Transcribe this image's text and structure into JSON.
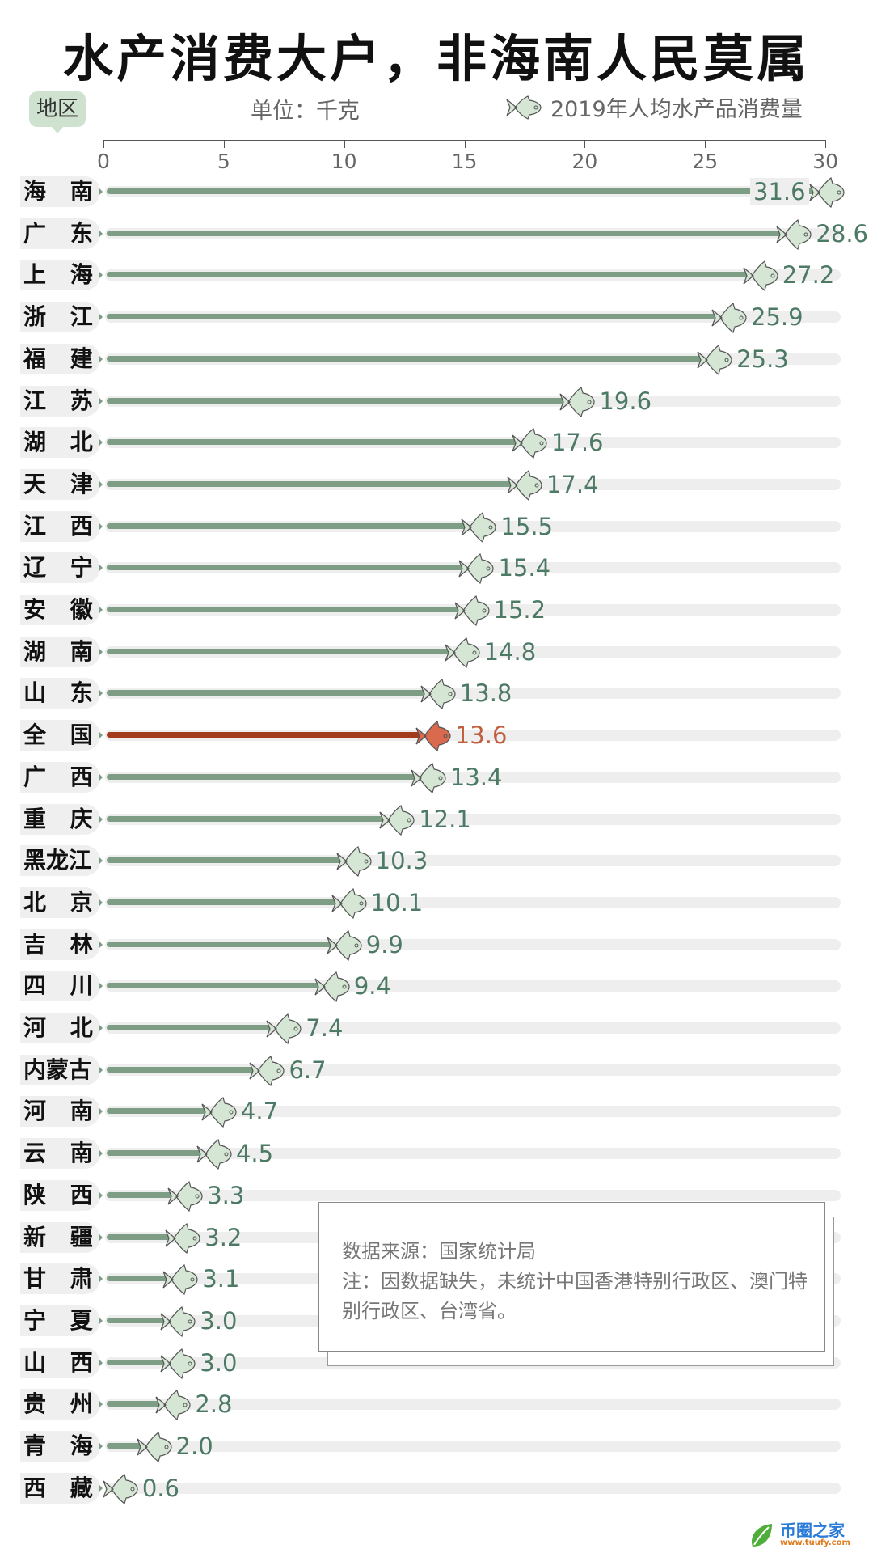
{
  "title": "水产消费大户，非海南人民莫属",
  "region_badge": "地区",
  "unit": "单位：千克",
  "legend": "2019年人均水产品消费量",
  "colors": {
    "bar": "#7d9e84",
    "value": "#4d7a65",
    "national_bar": "#a43a1c",
    "national_value": "#c0603f",
    "track": "#eeeeee"
  },
  "note": {
    "source": "数据来源：国家统计局",
    "text": "注：因数据缺失，未统计中国香港特别行政区、澳门特别行政区、台湾省。"
  },
  "brand": {
    "name": "币圈之家",
    "url": "www.tuufy.com"
  },
  "chart_data": {
    "type": "bar",
    "orientation": "horizontal",
    "title": "水产消费大户，非海南人民莫属",
    "xlabel": "单位：千克",
    "ylabel": "地区",
    "legend": [
      "2019年人均水产品消费量"
    ],
    "xlim": [
      0,
      30
    ],
    "xticks": [
      0,
      5,
      10,
      15,
      20,
      25,
      30
    ],
    "categories": [
      "海南",
      "广东",
      "上海",
      "浙江",
      "福建",
      "江苏",
      "湖北",
      "天津",
      "江西",
      "辽宁",
      "安徽",
      "湖南",
      "山东",
      "全国",
      "广西",
      "重庆",
      "黑龙江",
      "北京",
      "吉林",
      "四川",
      "河北",
      "内蒙古",
      "河南",
      "云南",
      "陕西",
      "新疆",
      "甘肃",
      "宁夏",
      "山西",
      "贵州",
      "青海",
      "西藏"
    ],
    "values": [
      31.6,
      28.6,
      27.2,
      25.9,
      25.3,
      19.6,
      17.6,
      17.4,
      15.5,
      15.4,
      15.2,
      14.8,
      13.8,
      13.6,
      13.4,
      12.1,
      10.3,
      10.1,
      9.9,
      9.4,
      7.4,
      6.7,
      4.7,
      4.5,
      3.3,
      3.2,
      3.1,
      3.0,
      3.0,
      2.8,
      2.0,
      0.6
    ],
    "highlight": "全国"
  },
  "rows": [
    {
      "name": "海 南",
      "value": "31.6"
    },
    {
      "name": "广 东",
      "value": "28.6"
    },
    {
      "name": "上 海",
      "value": "27.2"
    },
    {
      "name": "浙 江",
      "value": "25.9"
    },
    {
      "name": "福 建",
      "value": "25.3"
    },
    {
      "name": "江 苏",
      "value": "19.6"
    },
    {
      "name": "湖 北",
      "value": "17.6"
    },
    {
      "name": "天 津",
      "value": "17.4"
    },
    {
      "name": "江 西",
      "value": "15.5"
    },
    {
      "name": "辽 宁",
      "value": "15.4"
    },
    {
      "name": "安 徽",
      "value": "15.2"
    },
    {
      "name": "湖 南",
      "value": "14.8"
    },
    {
      "name": "山 东",
      "value": "13.8"
    },
    {
      "name": "全 国",
      "value": "13.6"
    },
    {
      "name": "广 西",
      "value": "13.4"
    },
    {
      "name": "重 庆",
      "value": "12.1"
    },
    {
      "name": "黑龙江",
      "value": "10.3"
    },
    {
      "name": "北 京",
      "value": "10.1"
    },
    {
      "name": "吉 林",
      "value": "9.9"
    },
    {
      "name": "四 川",
      "value": "9.4"
    },
    {
      "name": "河 北",
      "value": "7.4"
    },
    {
      "name": "内蒙古",
      "value": "6.7"
    },
    {
      "name": "河 南",
      "value": "4.7"
    },
    {
      "name": "云 南",
      "value": "4.5"
    },
    {
      "name": "陕 西",
      "value": "3.3"
    },
    {
      "name": "新 疆",
      "value": "3.2"
    },
    {
      "name": "甘 肃",
      "value": "3.1"
    },
    {
      "name": "宁 夏",
      "value": "3.0"
    },
    {
      "name": "山 西",
      "value": "3.0"
    },
    {
      "name": "贵 州",
      "value": "2.8"
    },
    {
      "name": "青 海",
      "value": "2.0"
    },
    {
      "name": "西 藏",
      "value": "0.6"
    }
  ]
}
